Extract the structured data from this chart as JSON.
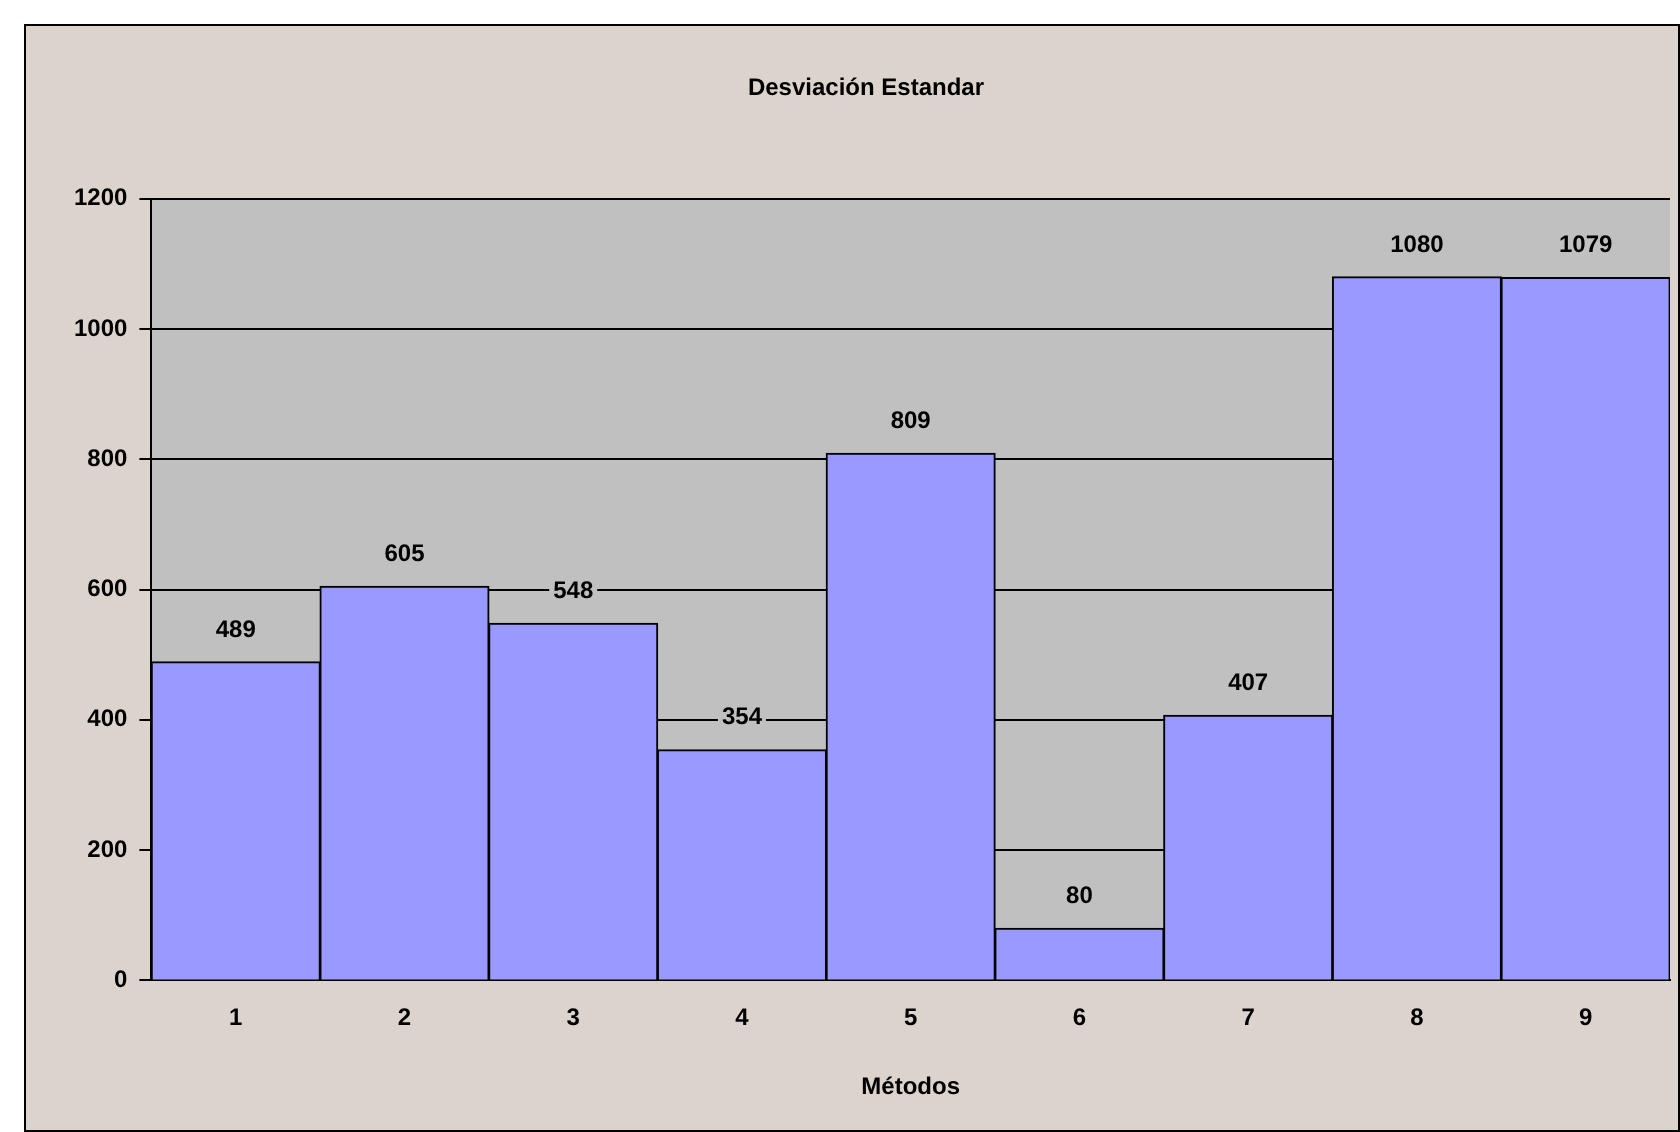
{
  "chart_data": {
    "type": "bar",
    "title": "Desviación Estandar",
    "xlabel": "Métodos",
    "categories": [
      "1",
      "2",
      "3",
      "4",
      "5",
      "6",
      "7",
      "8",
      "9"
    ],
    "values": [
      489,
      605,
      548,
      354,
      809,
      80,
      407,
      1080,
      1079
    ],
    "color": "#9999ff",
    "ylim": [
      0,
      1200
    ],
    "yticks": [
      0,
      200,
      400,
      600,
      800,
      1000,
      1200
    ],
    "grid": "y",
    "data_labels": true
  }
}
